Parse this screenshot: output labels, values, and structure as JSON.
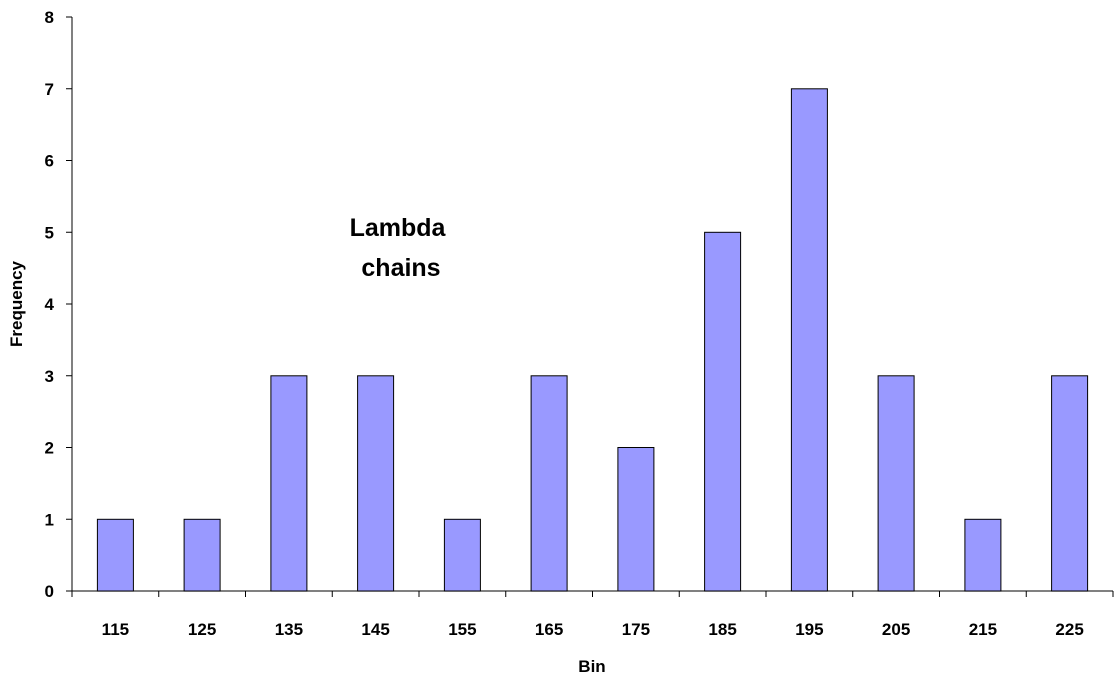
{
  "chart_data": {
    "type": "bar",
    "categories": [
      "115",
      "125",
      "135",
      "145",
      "155",
      "165",
      "175",
      "185",
      "195",
      "205",
      "215",
      "225"
    ],
    "values": [
      1,
      1,
      3,
      3,
      1,
      3,
      2,
      5,
      7,
      3,
      1,
      3
    ],
    "xlabel": "Bin",
    "ylabel": "Frequency",
    "ylim": [
      0,
      8
    ],
    "yticks": [
      "0",
      "1",
      "2",
      "3",
      "4",
      "5",
      "6",
      "7",
      "8"
    ],
    "annotation": [
      "Lambda",
      "chains"
    ],
    "bar_color": "#9999ff",
    "bar_edge_color": "#000000",
    "grid": false,
    "legend": "none"
  }
}
